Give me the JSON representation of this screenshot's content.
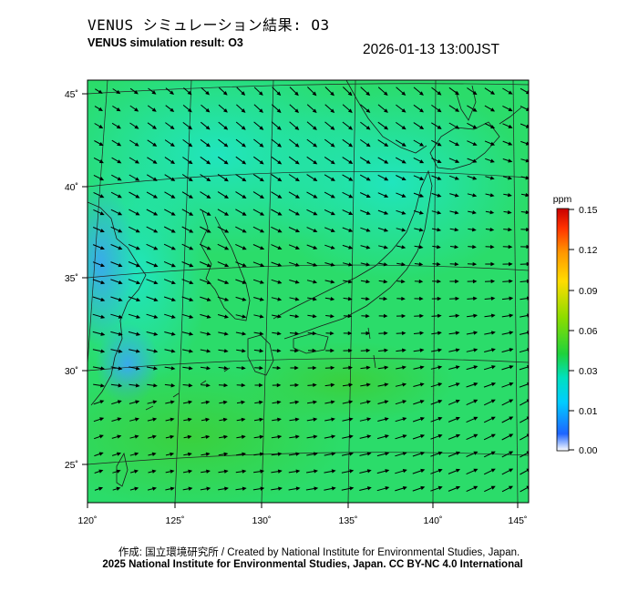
{
  "header": {
    "title_jp": "VENUS シミュレーション結果: O3",
    "title_en": "VENUS simulation result: O3",
    "timestamp": "2026-01-13 13:00JST"
  },
  "map": {
    "species": "O3",
    "lon_ticks": [
      "120˚",
      "125˚",
      "130˚",
      "135˚",
      "140˚",
      "145˚"
    ],
    "lat_ticks": [
      "45˚",
      "40˚",
      "35˚",
      "30˚",
      "25˚"
    ],
    "lon_range": [
      120,
      145
    ],
    "lat_range": [
      23,
      46
    ],
    "colors": {
      "field_main": "#2bdc6a",
      "field_low": "#33b8f0",
      "field_mid": "#1fe3b0",
      "field_high": "#3ccf38"
    }
  },
  "colorbar": {
    "unit": "ppm",
    "ticks": [
      "0.15",
      "0.12",
      "0.09",
      "0.06",
      "0.03",
      "0.01",
      "0.00"
    ],
    "colors": [
      "#ffffff",
      "#1e64ff",
      "#00ccff",
      "#00e0c0",
      "#1ed23c",
      "#8cdc00",
      "#ffdc00",
      "#ff9600",
      "#ff3200",
      "#c80000"
    ]
  },
  "footer": {
    "credit": "作成: 国立環境研究所 / Created by National Institute for Environmental Studies, Japan.",
    "license": "2025 National Institute for Environmental Studies, Japan. CC BY-NC 4.0 International"
  }
}
